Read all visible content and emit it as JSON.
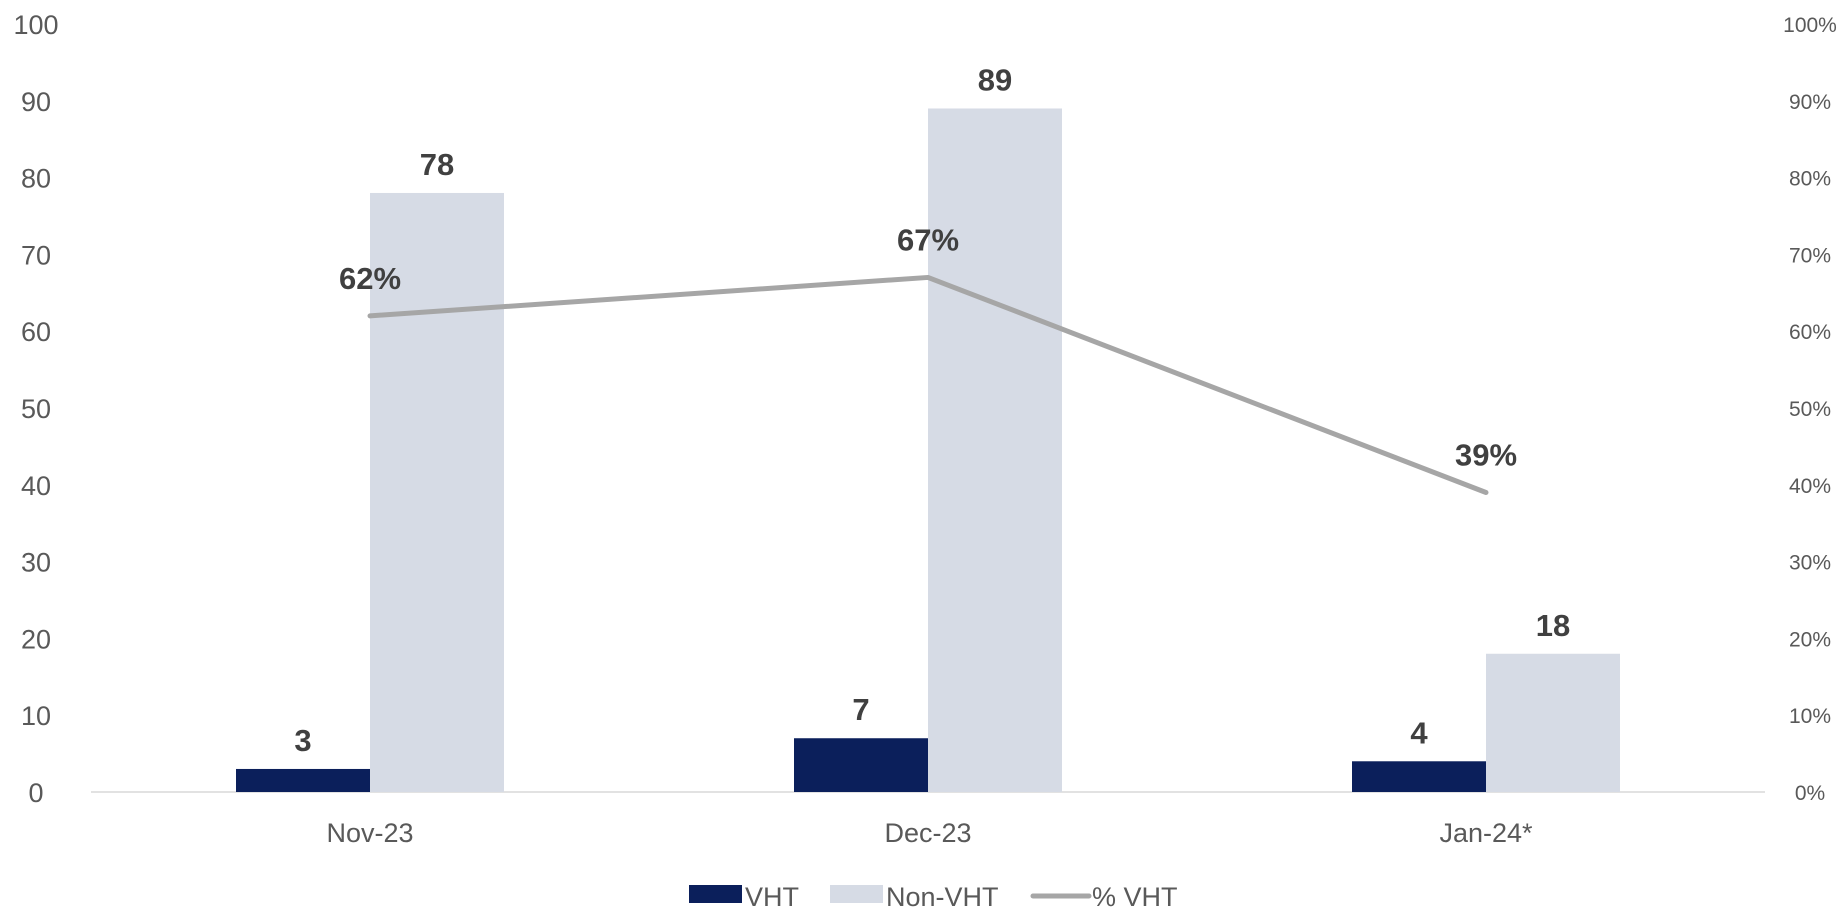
{
  "chart_data": {
    "type": "bar",
    "categories": [
      "Nov-23",
      "Dec-23",
      "Jan-24*"
    ],
    "series": [
      {
        "name": "VHT",
        "type": "bar",
        "axis": "left",
        "color": "#0B1F5B",
        "values": [
          3,
          7,
          4
        ],
        "labels": [
          "3",
          "7",
          "4"
        ]
      },
      {
        "name": "Non-VHT",
        "type": "bar",
        "axis": "left",
        "color": "#D6DBE5",
        "values": [
          78,
          89,
          18
        ],
        "labels": [
          "78",
          "89",
          "18"
        ]
      },
      {
        "name": "% VHT",
        "type": "line",
        "axis": "right",
        "color": "#A6A6A6",
        "values": [
          62,
          67,
          39
        ],
        "labels": [
          "62%",
          "67%",
          "39%"
        ]
      }
    ],
    "left_axis": {
      "ylim": [
        0,
        100
      ],
      "ticks": [
        "0",
        "10",
        "20",
        "30",
        "40",
        "50",
        "60",
        "70",
        "80",
        "90",
        "100"
      ]
    },
    "right_axis": {
      "ylim": [
        0,
        100
      ],
      "ticks": [
        "0%",
        "10%",
        "20%",
        "30%",
        "40%",
        "50%",
        "60%",
        "70%",
        "80%",
        "90%",
        "100%"
      ]
    },
    "grid": false,
    "legend": "bottom-center"
  }
}
